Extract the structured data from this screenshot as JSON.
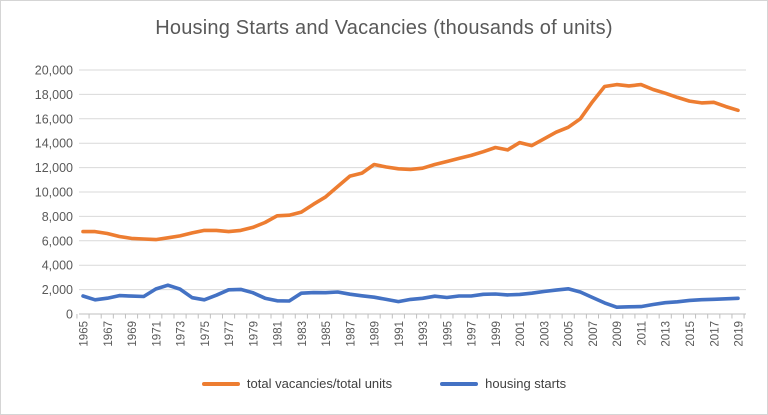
{
  "colors": {
    "series_orange": "#ED7D31",
    "series_blue": "#4472C4",
    "title_text": "#595959",
    "axis_text": "#595959",
    "gridline": "#D9D9D9",
    "axis_line": "#BFBFBF",
    "frame_border": "#D5D5D5"
  },
  "chart_data": {
    "type": "line",
    "title": "Housing Starts and Vacancies (thousands of units)",
    "xlabel": "",
    "ylabel": "",
    "ylim": [
      0,
      20000
    ],
    "ytick_step": 2000,
    "grid": "horizontal",
    "legend_position": "bottom",
    "ytick_labels": [
      "0",
      "2,000",
      "4,000",
      "6,000",
      "8,000",
      "10,000",
      "12,000",
      "14,000",
      "16,000",
      "18,000",
      "20,000"
    ],
    "xtick_labels": [
      "1965",
      "1967",
      "1969",
      "1971",
      "1973",
      "1975",
      "1977",
      "1979",
      "1981",
      "1983",
      "1985",
      "1987",
      "1989",
      "1991",
      "1993",
      "1995",
      "1997",
      "1999",
      "2001",
      "2003",
      "2005",
      "2007",
      "2009",
      "2011",
      "2013",
      "2015",
      "2017",
      "2019"
    ],
    "x": [
      1965,
      1966,
      1967,
      1968,
      1969,
      1970,
      1971,
      1972,
      1973,
      1974,
      1975,
      1976,
      1977,
      1978,
      1979,
      1980,
      1981,
      1982,
      1983,
      1984,
      1985,
      1986,
      1987,
      1988,
      1989,
      1990,
      1991,
      1992,
      1993,
      1994,
      1995,
      1996,
      1997,
      1998,
      1999,
      2000,
      2001,
      2002,
      2003,
      2004,
      2005,
      2006,
      2007,
      2008,
      2009,
      2010,
      2011,
      2012,
      2013,
      2014,
      2015,
      2016,
      2017,
      2018,
      2019
    ],
    "series": [
      {
        "name": "total vacancies/total units",
        "color": "#ED7D31",
        "values": [
          6750,
          6750,
          6600,
          6350,
          6200,
          6150,
          6100,
          6250,
          6400,
          6650,
          6850,
          6850,
          6750,
          6850,
          7100,
          7500,
          8050,
          8100,
          8350,
          9000,
          9600,
          10450,
          11300,
          11550,
          12250,
          12050,
          11900,
          11850,
          11950,
          12250,
          12500,
          12750,
          13000,
          13300,
          13650,
          13450,
          14050,
          13800,
          14350,
          14900,
          15300,
          16000,
          17400,
          18650,
          18800,
          18700,
          18800,
          18400,
          18100,
          17750,
          17450,
          17300,
          17350,
          17000,
          16700
        ]
      },
      {
        "name": "housing starts",
        "color": "#4472C4",
        "values": [
          1473,
          1165,
          1292,
          1508,
          1467,
          1434,
          2052,
          2357,
          2045,
          1338,
          1160,
          1538,
          1987,
          2020,
          1745,
          1292,
          1084,
          1062,
          1703,
          1750,
          1742,
          1805,
          1620,
          1488,
          1376,
          1193,
          1014,
          1200,
          1288,
          1457,
          1354,
          1477,
          1474,
          1617,
          1641,
          1569,
          1603,
          1705,
          1848,
          1956,
          2068,
          1801,
          1355,
          906,
          554,
          587,
          609,
          781,
          925,
          1003,
          1112,
          1174,
          1203,
          1250,
          1290
        ]
      }
    ]
  }
}
